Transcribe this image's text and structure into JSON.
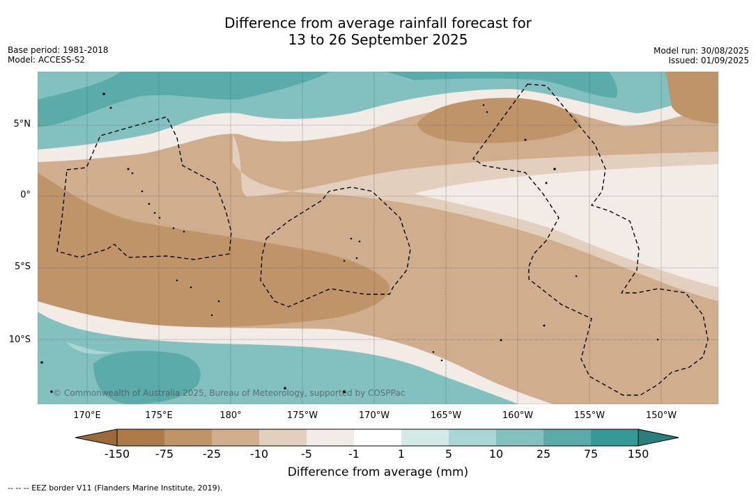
{
  "title_line1": "Difference from average rainfall forecast for",
  "title_line2": "13 to 26 September 2025",
  "base_period": "Base period: 1981-2018",
  "model": "Model: ACCESS-S2",
  "model_run": "Model run: 30/08/2025",
  "issued": "Issued: 01/09/2025",
  "lat_labels": [
    "5°N",
    "0°",
    "5°S",
    "10°S"
  ],
  "lon_labels": [
    "170°E",
    "175°E",
    "180°",
    "175°W",
    "170°W",
    "165°W",
    "160°W",
    "155°W",
    "150°W"
  ],
  "copyright": "© Commonwealth of Australia 2025, Bureau of Meteorology, supported by COSPPac",
  "colorbar": {
    "title": "Difference from average (mm)",
    "ticks": [
      "-150",
      "-75",
      "-25",
      "-10",
      "-5",
      "-1",
      "1",
      "5",
      "10",
      "25",
      "75",
      "150"
    ],
    "colors": [
      "#9c6a3a",
      "#ae7a46",
      "#bf9469",
      "#d0ae8d",
      "#e2cfbd",
      "#f3ebe6",
      "#ffffff",
      "#d3e9e7",
      "#a9d6d5",
      "#82c1c0",
      "#5babaa",
      "#359a96",
      "#2a7f7c"
    ]
  },
  "footer": "--  --  -- EEZ border V11 (Flanders Marine Institute, 2019)."
}
